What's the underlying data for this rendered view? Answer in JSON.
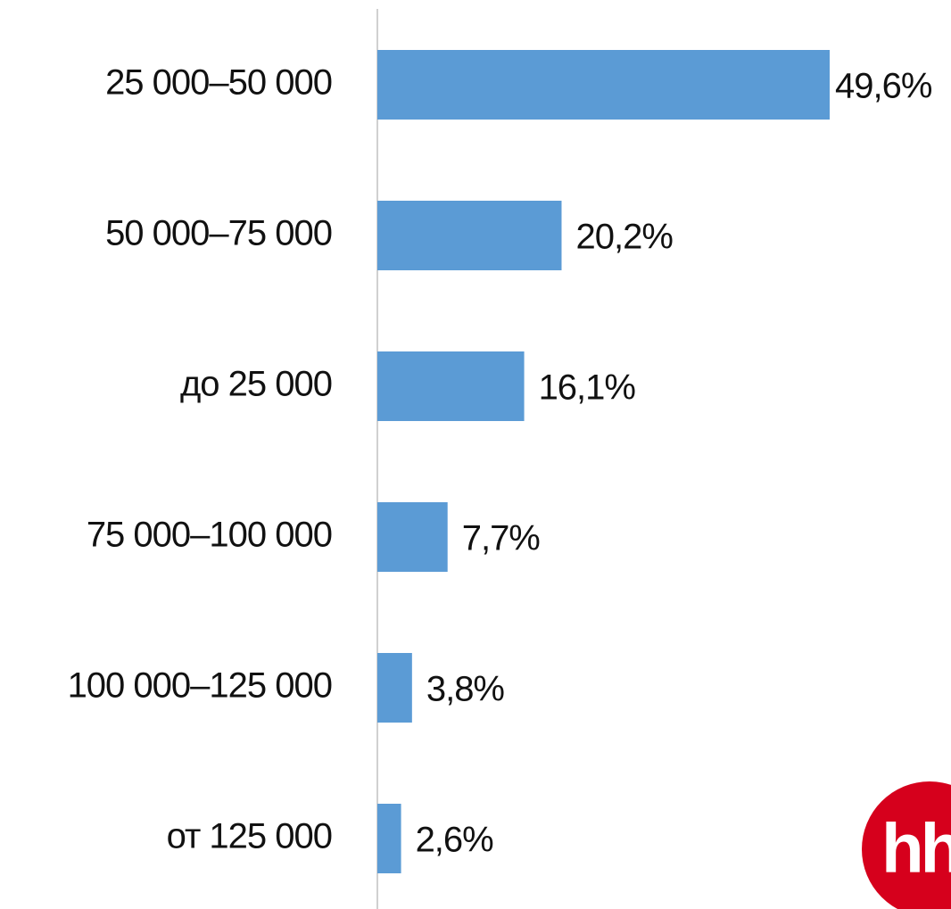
{
  "chart_data": {
    "type": "bar",
    "orientation": "horizontal",
    "categories": [
      "25 000–50 000",
      "50 000–75 000",
      "до 25 000",
      "75 000–100 000",
      "100 000–125 000",
      "от 125 000"
    ],
    "values": [
      49.6,
      20.2,
      16.1,
      7.7,
      3.8,
      2.6
    ],
    "value_labels": [
      "49,6%",
      "20,2%",
      "16,1%",
      "7,7%",
      "3,8%",
      "2,6%"
    ],
    "color": "#5b9bd5"
  },
  "logo": "hh"
}
